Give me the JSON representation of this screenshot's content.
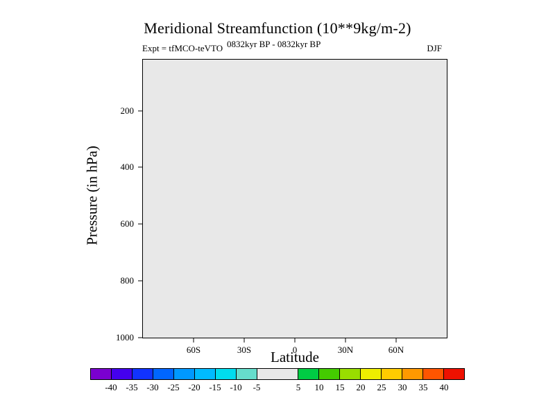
{
  "page": {
    "background": "#ffffff"
  },
  "chart_data": {
    "type": "heatmap",
    "title": "Meridional Streamfunction (10**9kg/m-2)",
    "annotations": {
      "experiment": "Expt = tfMCO-teVTO",
      "period_superscript": "0832kyr BP - 0832kyr BP",
      "season": "DJF"
    },
    "xlabel": "Latitude",
    "ylabel": "Pressure (in hPa)",
    "x_ticks": [
      {
        "label": "60S",
        "value": -60
      },
      {
        "label": "30S",
        "value": -30
      },
      {
        "label": "0",
        "value": 0
      },
      {
        "label": "30N",
        "value": 30
      },
      {
        "label": "60N",
        "value": 60
      }
    ],
    "xlim": [
      -90,
      90
    ],
    "y_ticks": [
      {
        "label": "200",
        "value": 200
      },
      {
        "label": "400",
        "value": 400
      },
      {
        "label": "600",
        "value": 600
      },
      {
        "label": "800",
        "value": 800
      },
      {
        "label": "1000",
        "value": 1000
      }
    ],
    "ylim_top_to_bottom": [
      20,
      1000
    ],
    "grid": false,
    "plot_background": "#e8e8e8",
    "field": {
      "description": "Difference field (0832kyr BP - 0832kyr BP) is uniformly zero; entire panel falls in the -5 to 5 color bin (light gray), no contours drawn.",
      "uniform_value": 0
    },
    "colorbar": {
      "levels": [
        -40,
        -35,
        -30,
        -25,
        -20,
        -15,
        -10,
        -5,
        5,
        10,
        15,
        20,
        25,
        30,
        35,
        40
      ],
      "colors": [
        "#7a00d0",
        "#4400ee",
        "#1133ff",
        "#0066ff",
        "#0099ff",
        "#00bbff",
        "#00ddee",
        "#66ddcc",
        "#e8e8e8",
        "#00cc44",
        "#44cc00",
        "#99dd00",
        "#eeee00",
        "#ffcc00",
        "#ff9900",
        "#ff5500",
        "#ee1100"
      ]
    }
  }
}
